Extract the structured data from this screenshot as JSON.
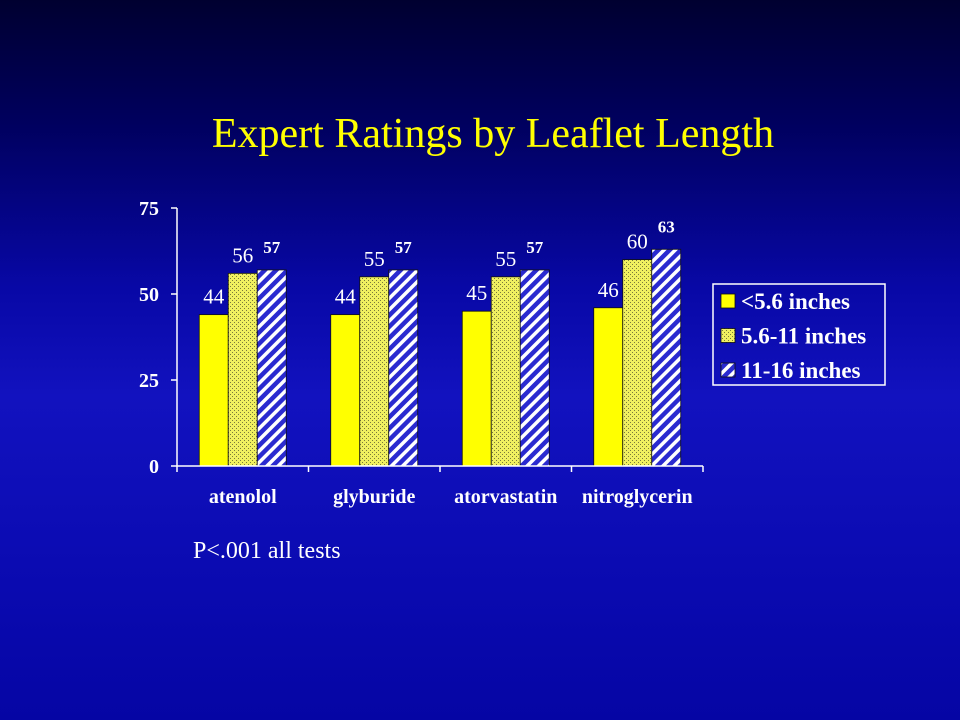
{
  "colors": {
    "title": "#ffff00",
    "text": "#ffffff",
    "axis": "#ffffff"
  },
  "slide": {
    "footnote": "P<.001 all tests"
  },
  "chart_data": {
    "type": "bar",
    "title": "Expert Ratings by Leaflet Length",
    "categories": [
      "atenolol",
      "glyburide",
      "atorvastatin",
      "nitroglycerin"
    ],
    "series": [
      {
        "name": "<5.6 inches",
        "values": [
          44,
          44,
          45,
          46
        ],
        "color": "#ffff00"
      },
      {
        "name": "5.6-11 inches",
        "values": [
          56,
          55,
          55,
          60
        ],
        "color": "#f0f060",
        "color2": "#7a7a3a"
      },
      {
        "name": "11-16 inches",
        "values": [
          57,
          57,
          57,
          63
        ],
        "color": "#2a2ad0",
        "color2": "#ffffff"
      }
    ],
    "ylim": [
      0,
      75
    ],
    "yticks": [
      0,
      25,
      50,
      75
    ],
    "grid": false,
    "legend": "right",
    "data_labels": true
  }
}
